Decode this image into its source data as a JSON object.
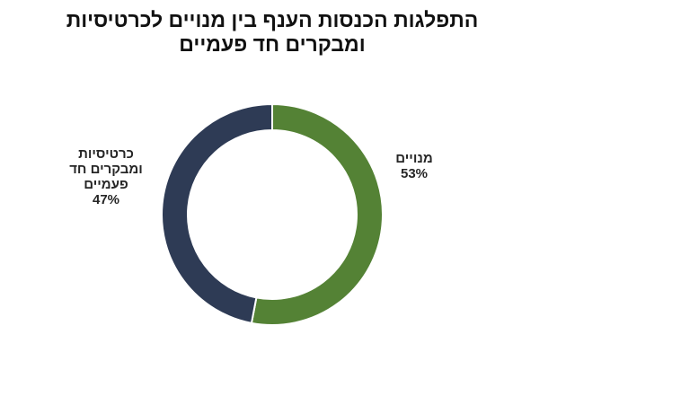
{
  "chart_data": {
    "type": "pie",
    "subtype": "donut",
    "title": "התפלגות הכנסות הענף בין מנויים לכרטיסיות ומבקרים חד פעמיים",
    "title_lines": [
      "התפלגות הכנסות הענף בין מנויים לכרטיסיות",
      "ומבקרים חד פעמיים"
    ],
    "categories": [
      "מנויים",
      "כרטיסיות ומבקרים חד פעמיים"
    ],
    "values": [
      53,
      47
    ],
    "unit": "%",
    "colors": [
      "#548235",
      "#2E3B55"
    ],
    "start_angle": "12 o'clock, clockwise",
    "legend": "none (data labels on slices)",
    "data_labels": [
      {
        "category": "מנויים",
        "lines": [
          "מנויים",
          "53%"
        ]
      },
      {
        "category": "כרטיסיות ומבקרים חד פעמיים",
        "lines": [
          "כרטיסיות",
          "ומבקרים חד",
          "פעמיים",
          "47%"
        ]
      }
    ]
  }
}
